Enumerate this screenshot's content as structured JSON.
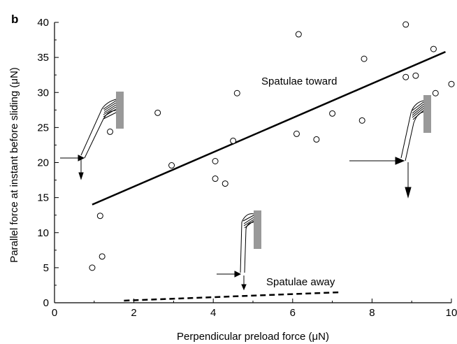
{
  "panel_label": "b",
  "chart_data": {
    "type": "scatter",
    "title": "",
    "xlabel": "Perpendicular preload force (μN)",
    "ylabel": "Parallel force at instant before sliding (μN)",
    "xlim": [
      0,
      10
    ],
    "ylim": [
      0,
      40
    ],
    "x_ticks": [
      0,
      2,
      4,
      6,
      8,
      10
    ],
    "y_ticks": [
      0,
      5,
      10,
      15,
      20,
      25,
      30,
      35,
      40
    ],
    "grid": false,
    "legend": "none",
    "points": [
      {
        "x": 0.95,
        "y": 5.0
      },
      {
        "x": 1.15,
        "y": 12.4
      },
      {
        "x": 1.2,
        "y": 6.6
      },
      {
        "x": 1.4,
        "y": 24.4
      },
      {
        "x": 2.6,
        "y": 27.1
      },
      {
        "x": 2.95,
        "y": 19.6
      },
      {
        "x": 4.05,
        "y": 17.7
      },
      {
        "x": 4.05,
        "y": 20.2
      },
      {
        "x": 4.3,
        "y": 17.0
      },
      {
        "x": 4.5,
        "y": 23.1
      },
      {
        "x": 4.6,
        "y": 29.9
      },
      {
        "x": 6.1,
        "y": 24.1
      },
      {
        "x": 6.15,
        "y": 38.3
      },
      {
        "x": 6.6,
        "y": 23.3
      },
      {
        "x": 7.0,
        "y": 27.0
      },
      {
        "x": 7.75,
        "y": 26.0
      },
      {
        "x": 7.8,
        "y": 34.8
      },
      {
        "x": 8.85,
        "y": 39.7
      },
      {
        "x": 8.85,
        "y": 32.2
      },
      {
        "x": 9.1,
        "y": 32.4
      },
      {
        "x": 9.55,
        "y": 36.2
      },
      {
        "x": 9.6,
        "y": 29.9
      },
      {
        "x": 10.0,
        "y": 31.2
      }
    ],
    "fit_lines": [
      {
        "name": "Spatulae toward",
        "style": "solid",
        "x": [
          0.95,
          9.85
        ],
        "y": [
          14.0,
          35.8
        ]
      },
      {
        "name": "Spatulae away",
        "style": "dashed",
        "x": [
          1.75,
          7.2
        ],
        "y": [
          0.3,
          1.5
        ]
      }
    ],
    "annotations": [
      {
        "text": "Spatulae toward"
      },
      {
        "text": "Spatulae away"
      }
    ]
  }
}
